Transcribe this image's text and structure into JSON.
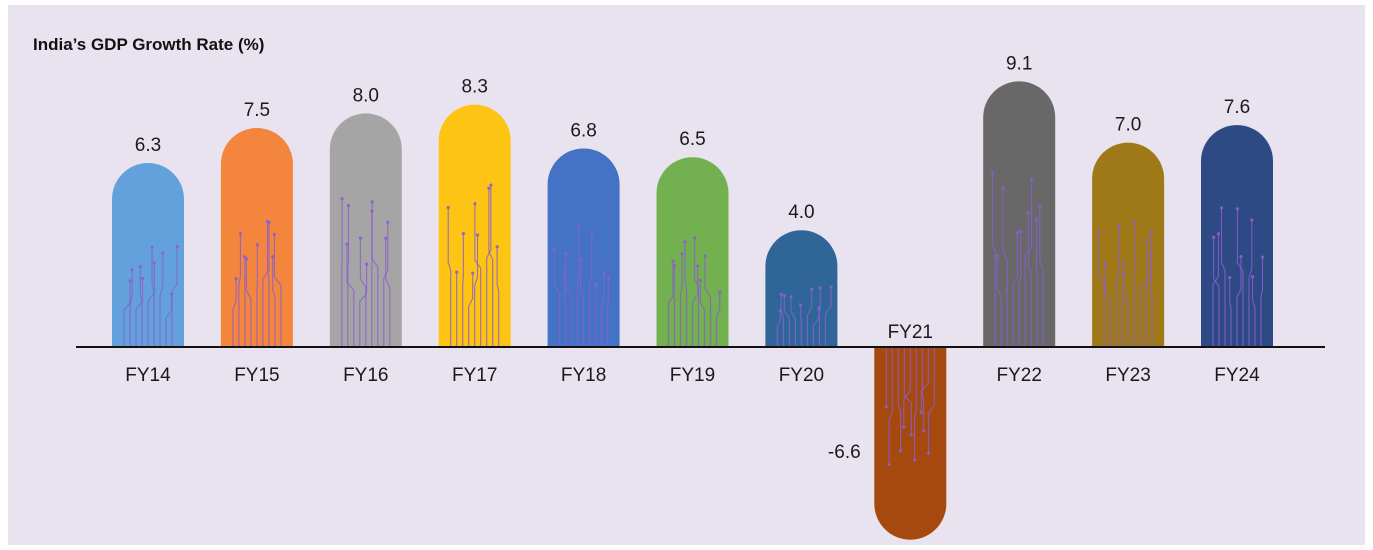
{
  "chart_data": {
    "type": "bar",
    "title": "India’s GDP Growth Rate (%)",
    "xlabel": "",
    "ylabel": "",
    "ylim": [
      -6.6,
      9.1
    ],
    "grid": false,
    "categories": [
      "FY14",
      "FY15",
      "FY16",
      "FY17",
      "FY18",
      "FY19",
      "FY20",
      "FY21",
      "FY22",
      "FY23",
      "FY24"
    ],
    "values": [
      6.3,
      7.5,
      8.0,
      8.3,
      6.8,
      6.5,
      4.0,
      -6.6,
      9.1,
      7.0,
      7.6
    ],
    "value_labels": [
      "6.3",
      "7.5",
      "8.0",
      "8.3",
      "6.8",
      "6.5",
      "4.0",
      "-6.6",
      "9.1",
      "7.0",
      "7.6"
    ],
    "colors": [
      "#63a1dc",
      "#f4853d",
      "#a5a5a5",
      "#fec413",
      "#4473c6",
      "#72b050",
      "#2f6597",
      "#a6490f",
      "#686868",
      "#9f7818",
      "#2d4a84"
    ]
  }
}
